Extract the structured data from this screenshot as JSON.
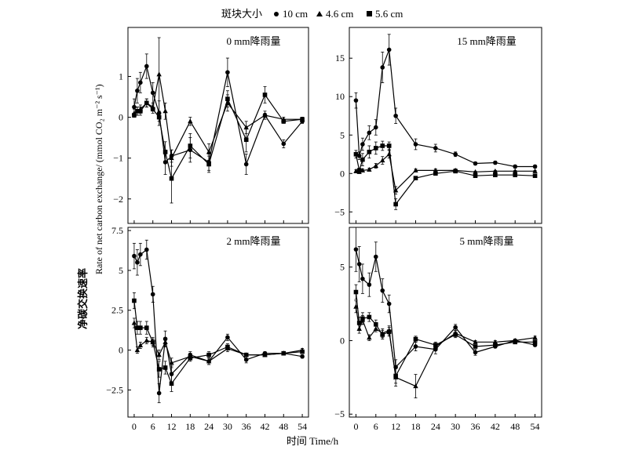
{
  "legend": {
    "title": "斑块大小",
    "items": [
      {
        "label": "10 cm",
        "marker": "circle"
      },
      {
        "label": "4.6 cm",
        "marker": "triangle"
      },
      {
        "label": "5.6 cm",
        "marker": "square"
      }
    ]
  },
  "y_label": "净碳交换速率",
  "y_label_en": "Rate of net carbon exchange/ (mmol CO₂ m⁻² s⁻¹)",
  "x_label": "时间 Time/h",
  "chart_data": [
    {
      "type": "line",
      "title": "0 mm降雨量",
      "x": [
        0,
        1,
        2,
        4,
        6,
        8,
        10,
        12,
        18,
        24,
        30,
        36,
        42,
        48,
        54
      ],
      "xlim": [
        -2,
        56
      ],
      "ylim": [
        -2.6,
        2.2
      ],
      "xticks": [
        0,
        6,
        12,
        18,
        24,
        30,
        36,
        42,
        48,
        54
      ],
      "yticks": [
        -2,
        -1,
        0,
        1
      ],
      "series": [
        {
          "name": "10 cm",
          "marker": "circle",
          "values": [
            0.25,
            0.65,
            0.85,
            1.25,
            0.6,
            0.1,
            -1.1,
            -0.95,
            -0.8,
            -1.1,
            1.1,
            -1.15,
            0.05,
            -0.65,
            -0.1
          ],
          "err": [
            0.2,
            0.3,
            0.25,
            0.3,
            0.25,
            0.3,
            0.3,
            0.15,
            0.3,
            0.2,
            0.35,
            0.25,
            0.1,
            0.1,
            0.05
          ]
        },
        {
          "name": "4.6 cm",
          "marker": "triangle",
          "values": [
            0.1,
            0.15,
            0.2,
            0.35,
            0.25,
            1.05,
            0.15,
            -1.0,
            -0.1,
            -0.85,
            0.35,
            -0.25,
            0.05,
            -0.05,
            -0.05
          ],
          "err": [
            0.1,
            0.1,
            0.1,
            0.1,
            0.1,
            0.9,
            0.2,
            0.2,
            0.1,
            0.2,
            0.2,
            0.15,
            0.05,
            0.05,
            0.05
          ]
        },
        {
          "name": "5.6 cm",
          "marker": "square",
          "values": [
            0.05,
            0.15,
            0.15,
            0.35,
            0.2,
            0.0,
            -0.85,
            -1.5,
            -0.7,
            -1.15,
            0.45,
            -0.55,
            0.55,
            -0.1,
            -0.05
          ],
          "err": [
            0.05,
            0.1,
            0.1,
            0.1,
            0.1,
            0.1,
            0.25,
            0.6,
            0.3,
            0.2,
            0.2,
            0.3,
            0.2,
            0.05,
            0.05
          ]
        }
      ]
    },
    {
      "type": "line",
      "title": "15 mm降雨量",
      "x": [
        0,
        1,
        2,
        4,
        6,
        8,
        10,
        12,
        18,
        24,
        30,
        36,
        42,
        48,
        54
      ],
      "xlim": [
        -2,
        56
      ],
      "ylim": [
        -6.5,
        19
      ],
      "xticks": [
        0,
        6,
        12,
        18,
        24,
        30,
        36,
        42,
        48,
        54
      ],
      "yticks": [
        -5,
        0,
        5,
        10,
        15
      ],
      "series": [
        {
          "name": "10 cm",
          "marker": "circle",
          "values": [
            9.5,
            2.3,
            3.8,
            5.3,
            6.0,
            13.8,
            16.1,
            7.5,
            3.8,
            3.3,
            2.5,
            1.3,
            1.4,
            0.9,
            0.9
          ],
          "err": [
            1.0,
            0.5,
            0.8,
            0.9,
            1.0,
            2.0,
            2.0,
            1.0,
            0.7,
            0.5,
            0.3,
            0.2,
            0.2,
            0.2,
            0.2
          ]
        },
        {
          "name": "4.6 cm",
          "marker": "triangle",
          "values": [
            0.3,
            0.2,
            0.4,
            0.5,
            1.0,
            1.7,
            2.5,
            -2.2,
            0.4,
            0.4,
            0.4,
            0.2,
            0.3,
            0.3,
            0.3
          ],
          "err": [
            0.2,
            0.2,
            0.2,
            0.2,
            0.3,
            0.5,
            0.5,
            0.5,
            0.2,
            0.2,
            0.2,
            0.1,
            0.1,
            0.1,
            0.1
          ]
        },
        {
          "name": "5.6 cm",
          "marker": "square",
          "values": [
            2.5,
            0.4,
            1.8,
            2.8,
            3.3,
            3.6,
            3.6,
            -4.0,
            -0.6,
            0.0,
            0.3,
            -0.3,
            -0.2,
            -0.2,
            -0.3
          ],
          "err": [
            0.5,
            0.3,
            0.8,
            0.8,
            0.8,
            0.6,
            0.5,
            0.7,
            0.2,
            0.2,
            0.2,
            0.1,
            0.1,
            0.1,
            0.1
          ]
        }
      ]
    },
    {
      "type": "line",
      "title": "2 mm降雨量",
      "x": [
        0,
        1,
        2,
        4,
        6,
        8,
        10,
        12,
        18,
        24,
        30,
        36,
        42,
        48,
        54
      ],
      "xlim": [
        -2,
        56
      ],
      "ylim": [
        -4.2,
        7.7
      ],
      "xticks": [
        0,
        6,
        12,
        18,
        24,
        30,
        36,
        42,
        48,
        54
      ],
      "yticks": [
        -2.5,
        0,
        2.5,
        5.0,
        7.5
      ],
      "series": [
        {
          "name": "10 cm",
          "marker": "circle",
          "values": [
            5.9,
            5.5,
            6.0,
            6.3,
            3.5,
            -2.7,
            0.7,
            -1.5,
            -0.3,
            -0.7,
            0.8,
            -0.6,
            -0.2,
            -0.2,
            -0.4
          ],
          "err": [
            0.8,
            0.8,
            0.7,
            0.6,
            0.5,
            0.6,
            0.5,
            0.5,
            0.2,
            0.2,
            0.2,
            0.2,
            0.1,
            0.1,
            0.1
          ]
        },
        {
          "name": "4.6 cm",
          "marker": "triangle",
          "values": [
            1.7,
            0.0,
            0.3,
            0.6,
            0.5,
            -0.3,
            0.5,
            -0.8,
            -0.4,
            -0.7,
            0.1,
            -0.3,
            -0.3,
            -0.2,
            0.0
          ],
          "err": [
            0.3,
            0.2,
            0.2,
            0.2,
            0.2,
            0.3,
            0.3,
            0.3,
            0.2,
            0.2,
            0.2,
            0.1,
            0.1,
            0.1,
            0.1
          ]
        },
        {
          "name": "5.6 cm",
          "marker": "square",
          "values": [
            3.1,
            1.4,
            1.4,
            1.4,
            0.5,
            -1.2,
            -1.1,
            -2.1,
            -0.5,
            -0.3,
            0.2,
            -0.3,
            -0.3,
            -0.2,
            -0.1
          ],
          "err": [
            0.5,
            0.4,
            0.4,
            0.4,
            0.3,
            0.5,
            0.4,
            0.5,
            0.2,
            0.2,
            0.2,
            0.1,
            0.1,
            0.1,
            0.1
          ]
        }
      ]
    },
    {
      "type": "line",
      "title": "5 mm降雨量",
      "x": [
        0,
        1,
        2,
        4,
        6,
        8,
        10,
        12,
        18,
        24,
        30,
        36,
        42,
        48,
        54
      ],
      "xlim": [
        -2,
        56
      ],
      "ylim": [
        -5.2,
        7.7
      ],
      "xticks": [
        0,
        6,
        12,
        18,
        24,
        30,
        36,
        42,
        48,
        54
      ],
      "yticks": [
        -5,
        0,
        5
      ],
      "series": [
        {
          "name": "10 cm",
          "marker": "circle",
          "values": [
            6.2,
            5.2,
            4.2,
            3.8,
            5.7,
            3.4,
            2.5,
            -1.8,
            -0.4,
            -0.6,
            0.9,
            -0.8,
            -0.4,
            0.0,
            -0.3
          ],
          "err": [
            1.5,
            1.2,
            1.0,
            0.8,
            1.0,
            0.8,
            0.6,
            0.5,
            0.3,
            0.3,
            0.2,
            0.2,
            0.1,
            0.1,
            0.1
          ]
        },
        {
          "name": "4.6 cm",
          "marker": "triangle",
          "values": [
            2.3,
            0.8,
            1.4,
            0.2,
            0.8,
            0.5,
            0.7,
            -2.5,
            -3.1,
            -0.4,
            0.5,
            -0.1,
            -0.1,
            0.0,
            0.2
          ],
          "err": [
            0.4,
            0.3,
            0.3,
            0.2,
            0.2,
            0.3,
            0.3,
            0.6,
            0.8,
            0.2,
            0.2,
            0.1,
            0.1,
            0.1,
            0.1
          ]
        },
        {
          "name": "5.6 cm",
          "marker": "square",
          "values": [
            3.3,
            1.2,
            1.5,
            1.6,
            1.1,
            0.4,
            0.6,
            -2.4,
            0.1,
            -0.3,
            0.4,
            -0.4,
            -0.3,
            -0.1,
            -0.1
          ],
          "err": [
            0.5,
            0.4,
            0.4,
            0.3,
            0.3,
            0.3,
            0.3,
            0.5,
            0.2,
            0.2,
            0.2,
            0.1,
            0.1,
            0.1,
            0.1
          ]
        }
      ]
    }
  ]
}
